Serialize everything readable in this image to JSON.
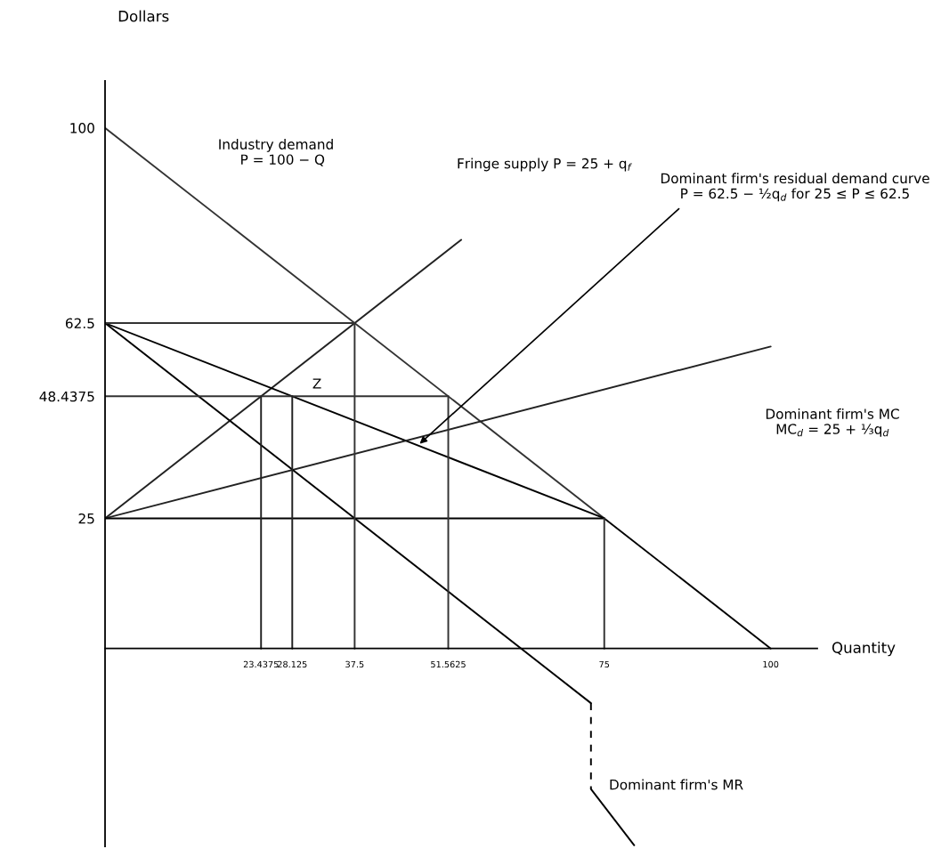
{
  "chart_data": {
    "type": "line",
    "xlabel": "Quantity",
    "ylabel": "Dollars",
    "xlim": [
      0,
      107
    ],
    "ylim": [
      -38,
      109
    ],
    "xticks": [
      23.4375,
      28.125,
      37.5,
      51.5625,
      75,
      100
    ],
    "yticks": [
      25,
      48.4375,
      62.5,
      100
    ],
    "series": [
      {
        "color": "#333333",
        "x": [
          0,
          75
        ],
        "values": [
          100,
          25
        ]
      },
      {
        "color": "#222222",
        "x": [
          0,
          53.5
        ],
        "values": [
          25,
          78.5
        ]
      },
      {
        "color": "#000000",
        "x": [
          0,
          75,
          100
        ],
        "values": [
          62.5,
          25,
          0
        ]
      },
      {
        "color": "#222222",
        "x": [
          0,
          100
        ],
        "values": [
          25,
          58
        ]
      },
      {
        "color": "#000000",
        "x": [
          0,
          73
        ],
        "values": [
          62.5,
          -10.5
        ]
      },
      {
        "color": "#000000",
        "x": [
          73,
          73
        ],
        "values": [
          -10.5,
          -27
        ],
        "line_style": "dashed"
      },
      {
        "color": "#000000",
        "x": [
          73,
          79.5
        ],
        "values": [
          -27,
          -37.8
        ]
      },
      {
        "color": "#333333",
        "x": [
          0,
          37.5
        ],
        "values": [
          62.5,
          62.5
        ]
      },
      {
        "color": "#333333",
        "x": [
          0,
          51.5625
        ],
        "values": [
          48.4375,
          48.4375
        ]
      },
      {
        "color": "#000000",
        "x": [
          0,
          75
        ],
        "values": [
          25,
          25
        ]
      },
      {
        "color": "#222222",
        "x": [
          23.4375,
          23.4375
        ],
        "values": [
          0,
          48.4375
        ]
      },
      {
        "color": "#222222",
        "x": [
          28.125,
          28.125
        ],
        "values": [
          0,
          48.4375
        ]
      },
      {
        "color": "#333333",
        "x": [
          37.5,
          37.5
        ],
        "values": [
          0,
          62.5
        ]
      },
      {
        "color": "#333333",
        "x": [
          51.5625,
          51.5625
        ],
        "values": [
          0,
          48.4375
        ]
      },
      {
        "color": "#333333",
        "x": [
          75,
          75
        ],
        "values": [
          0,
          25
        ]
      }
    ],
    "annotations": [
      "Industry demand\n   P = 100 − Q",
      "Fringe supply P = 25 + q$_{f}$",
      {
        "text": "Dominant firm's residual demand curve\nP = 62.5 − ½q$_{d}$ for 25 ≤ P ≤ 62.5",
        "x": 47,
        "y": 39
      },
      "Dominant firm's MC\nMC$_{d}$ = 25 + ⅓q$_{d}$",
      {
        "text": "Z",
        "x": 28.125,
        "y": 48.4375
      },
      "Dominant firm's MR"
    ]
  }
}
